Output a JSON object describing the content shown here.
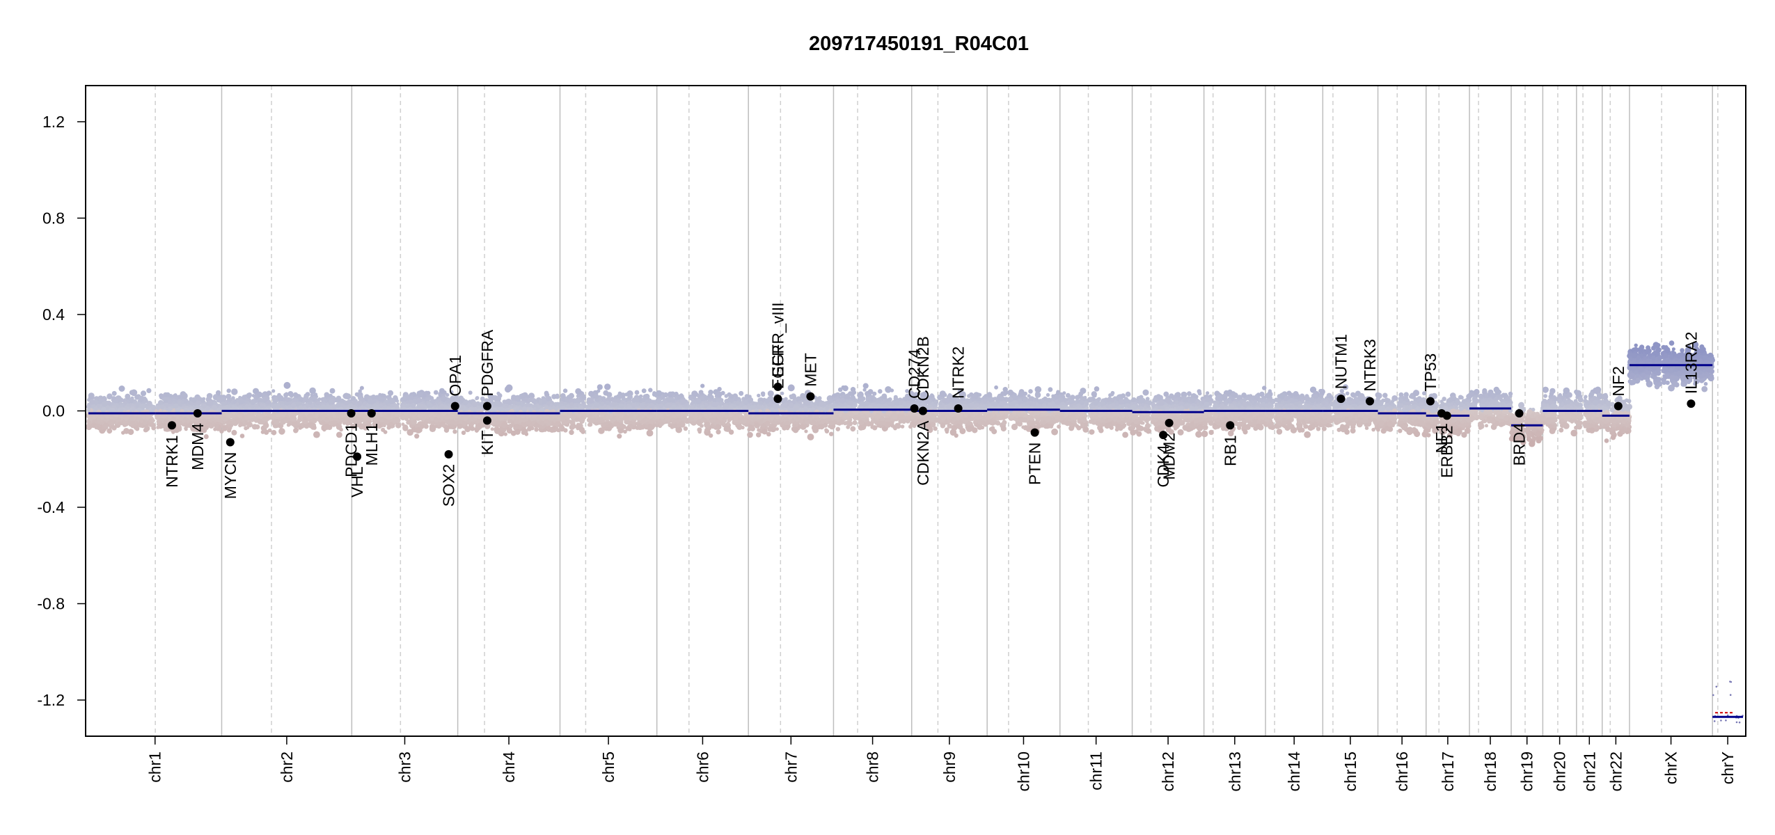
{
  "chart_data": {
    "type": "scatter",
    "title": "209717450191_R04C01",
    "xlabel": "",
    "ylabel": "",
    "ylim": [
      -1.35,
      1.35
    ],
    "y_ticks": [
      -1.2,
      -0.8,
      -0.4,
      0.0,
      0.4,
      0.8,
      1.2
    ],
    "y_tick_labels": [
      "-1.2",
      "-0.8",
      "-0.4",
      "0.0",
      "0.4",
      "0.8",
      "1.2"
    ],
    "grid": false,
    "legend": "none",
    "colors": {
      "gain": "#8f95c5",
      "loss": "#c19b9b",
      "segment": "#00008b",
      "gene_point": "#000000",
      "axis": "#000000",
      "chr_boundary": "#bdbdbd",
      "centromere": "#cfcfcf",
      "y_loss_segment": "#cc0000"
    },
    "chromosomes": [
      {
        "name": "chr1",
        "length": 249,
        "centromere": 125
      },
      {
        "name": "chr2",
        "length": 243,
        "centromere": 93
      },
      {
        "name": "chr3",
        "length": 198,
        "centromere": 91
      },
      {
        "name": "chr4",
        "length": 191,
        "centromere": 50
      },
      {
        "name": "chr5",
        "length": 181,
        "centromere": 48
      },
      {
        "name": "chr6",
        "length": 171,
        "centromere": 60
      },
      {
        "name": "chr7",
        "length": 159,
        "centromere": 60
      },
      {
        "name": "chr8",
        "length": 146,
        "centromere": 45
      },
      {
        "name": "chr9",
        "length": 141,
        "centromere": 49
      },
      {
        "name": "chr10",
        "length": 136,
        "centromere": 40
      },
      {
        "name": "chr11",
        "length": 135,
        "centromere": 53
      },
      {
        "name": "chr12",
        "length": 134,
        "centromere": 35
      },
      {
        "name": "chr13",
        "length": 115,
        "centromere": 17
      },
      {
        "name": "chr14",
        "length": 107,
        "centromere": 17
      },
      {
        "name": "chr15",
        "length": 103,
        "centromere": 19
      },
      {
        "name": "chr16",
        "length": 90,
        "centromere": 36
      },
      {
        "name": "chr17",
        "length": 81,
        "centromere": 24
      },
      {
        "name": "chr18",
        "length": 78,
        "centromere": 17
      },
      {
        "name": "chr19",
        "length": 59,
        "centromere": 26
      },
      {
        "name": "chr20",
        "length": 63,
        "centromere": 28
      },
      {
        "name": "chr21",
        "length": 48,
        "centromere": 12
      },
      {
        "name": "chr22",
        "length": 51,
        "centromere": 15
      },
      {
        "name": "chrX",
        "length": 155,
        "centromere": 60
      },
      {
        "name": "chrY",
        "length": 57,
        "centromere": 10
      }
    ],
    "segments": [
      {
        "chr": "chr1",
        "start": 0,
        "end": 125,
        "value": -0.01
      },
      {
        "chr": "chr1",
        "start": 125,
        "end": 249,
        "value": -0.01
      },
      {
        "chr": "chr2",
        "start": 0,
        "end": 243,
        "value": 0.0
      },
      {
        "chr": "chr3",
        "start": 0,
        "end": 198,
        "value": 0.0
      },
      {
        "chr": "chr4",
        "start": 0,
        "end": 191,
        "value": -0.01
      },
      {
        "chr": "chr5",
        "start": 0,
        "end": 181,
        "value": 0.0
      },
      {
        "chr": "chr6",
        "start": 0,
        "end": 171,
        "value": 0.0
      },
      {
        "chr": "chr7",
        "start": 0,
        "end": 159,
        "value": -0.01
      },
      {
        "chr": "chr8",
        "start": 0,
        "end": 146,
        "value": 0.005
      },
      {
        "chr": "chr9",
        "start": 0,
        "end": 141,
        "value": 0.0
      },
      {
        "chr": "chr10",
        "start": 0,
        "end": 136,
        "value": 0.005
      },
      {
        "chr": "chr11",
        "start": 0,
        "end": 135,
        "value": 0.0
      },
      {
        "chr": "chr12",
        "start": 0,
        "end": 134,
        "value": -0.005
      },
      {
        "chr": "chr13",
        "start": 0,
        "end": 115,
        "value": 0.0
      },
      {
        "chr": "chr14",
        "start": 0,
        "end": 107,
        "value": 0.0
      },
      {
        "chr": "chr15",
        "start": 0,
        "end": 103,
        "value": 0.0
      },
      {
        "chr": "chr16",
        "start": 0,
        "end": 90,
        "value": -0.01
      },
      {
        "chr": "chr17",
        "start": 0,
        "end": 40,
        "value": -0.02
      },
      {
        "chr": "chr17",
        "start": 40,
        "end": 81,
        "value": -0.02
      },
      {
        "chr": "chr18",
        "start": 0,
        "end": 78,
        "value": 0.01
      },
      {
        "chr": "chr19",
        "start": 0,
        "end": 59,
        "value": -0.06
      },
      {
        "chr": "chr20",
        "start": 0,
        "end": 63,
        "value": 0.0
      },
      {
        "chr": "chr21",
        "start": 0,
        "end": 48,
        "value": 0.0
      },
      {
        "chr": "chr22",
        "start": 0,
        "end": 51,
        "value": -0.02
      },
      {
        "chr": "chrX",
        "start": 0,
        "end": 155,
        "value": 0.19
      },
      {
        "chr": "chrY",
        "start": 0,
        "end": 57,
        "value": -1.27
      }
    ],
    "genes": [
      {
        "name": "NTRK1",
        "chr": "chr1",
        "pos": 156,
        "value": -0.06,
        "side": "below"
      },
      {
        "name": "MDM4",
        "chr": "chr1",
        "pos": 204,
        "value": -0.01,
        "side": "below"
      },
      {
        "name": "MYCN",
        "chr": "chr2",
        "pos": 16,
        "value": -0.13,
        "side": "below"
      },
      {
        "name": "PDCD1",
        "chr": "chr2",
        "pos": 242,
        "value": -0.01,
        "side": "below"
      },
      {
        "name": "VHL",
        "chr": "chr3",
        "pos": 10,
        "value": -0.19,
        "side": "below"
      },
      {
        "name": "MLH1",
        "chr": "chr3",
        "pos": 37,
        "value": -0.01,
        "side": "below"
      },
      {
        "name": "SOX2",
        "chr": "chr3",
        "pos": 181,
        "value": -0.18,
        "side": "below"
      },
      {
        "name": "OPA1",
        "chr": "chr3",
        "pos": 193,
        "value": 0.02,
        "side": "above"
      },
      {
        "name": "KIT",
        "chr": "chr4",
        "pos": 55,
        "value": -0.04,
        "side": "below"
      },
      {
        "name": "PDGFRA",
        "chr": "chr4",
        "pos": 55,
        "value": 0.02,
        "side": "above"
      },
      {
        "name": "EGFR",
        "chr": "chr7",
        "pos": 55,
        "value": 0.05,
        "side": "above"
      },
      {
        "name": "EGFR_vIII",
        "chr": "chr7",
        "pos": 55,
        "value": 0.1,
        "side": "above"
      },
      {
        "name": "MET",
        "chr": "chr7",
        "pos": 116,
        "value": 0.06,
        "side": "above"
      },
      {
        "name": "CD274",
        "chr": "chr9",
        "pos": 5,
        "value": 0.01,
        "side": "above"
      },
      {
        "name": "CDKN2A",
        "chr": "chr9",
        "pos": 21,
        "value": 0.0,
        "side": "below"
      },
      {
        "name": "CDKN2B",
        "chr": "chr9",
        "pos": 21,
        "value": 0.0,
        "side": "above"
      },
      {
        "name": "NTRK2",
        "chr": "chr9",
        "pos": 87,
        "value": 0.01,
        "side": "above"
      },
      {
        "name": "PTEN",
        "chr": "chr10",
        "pos": 89,
        "value": -0.09,
        "side": "below"
      },
      {
        "name": "CDK4",
        "chr": "chr12",
        "pos": 58,
        "value": -0.1,
        "side": "below"
      },
      {
        "name": "MDM2",
        "chr": "chr12",
        "pos": 69,
        "value": -0.05,
        "side": "below"
      },
      {
        "name": "RB1",
        "chr": "chr13",
        "pos": 49,
        "value": -0.06,
        "side": "below"
      },
      {
        "name": "NUTM1",
        "chr": "chr15",
        "pos": 34,
        "value": 0.05,
        "side": "above"
      },
      {
        "name": "NTRK3",
        "chr": "chr15",
        "pos": 88,
        "value": 0.04,
        "side": "above"
      },
      {
        "name": "TP53",
        "chr": "chr17",
        "pos": 8,
        "value": 0.04,
        "side": "above"
      },
      {
        "name": "NF1",
        "chr": "chr17",
        "pos": 29,
        "value": -0.01,
        "side": "below"
      },
      {
        "name": "ERBB2",
        "chr": "chr17",
        "pos": 39,
        "value": -0.02,
        "side": "below"
      },
      {
        "name": "BRD4",
        "chr": "chr19",
        "pos": 15,
        "value": -0.01,
        "side": "below"
      },
      {
        "name": "NF2",
        "chr": "chr22",
        "pos": 30,
        "value": 0.02,
        "side": "above"
      },
      {
        "name": "IL13RA2",
        "chr": "chrX",
        "pos": 115,
        "value": 0.03,
        "side": "above"
      }
    ]
  }
}
